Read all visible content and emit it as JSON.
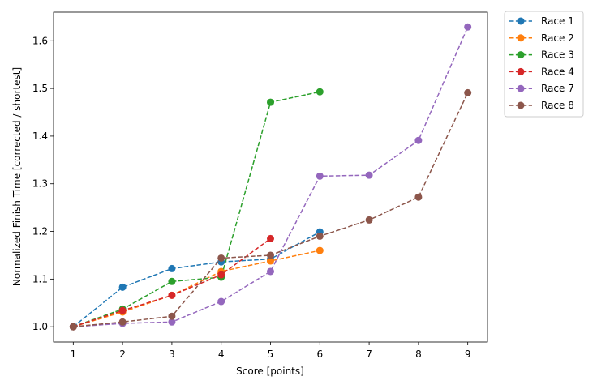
{
  "chart_data": {
    "type": "line",
    "xlabel": "Score [points]",
    "ylabel": "Normalized Finish Time [corrected / shortest]",
    "xlim": [
      0.6,
      9.4
    ],
    "ylim": [
      0.968,
      1.66
    ],
    "xticks": [
      "1",
      "2",
      "3",
      "4",
      "5",
      "6",
      "7",
      "8",
      "9"
    ],
    "yticks": [
      "1.0",
      "1.1",
      "1.2",
      "1.3",
      "1.4",
      "1.5",
      "1.6"
    ],
    "grid": false,
    "legend_position": "outside-top-right",
    "line_style": "dashed with circle markers",
    "series": [
      {
        "name": "Race 1",
        "color": "#1f77b4",
        "x": [
          1,
          2,
          3,
          4,
          5,
          6
        ],
        "y": [
          1.0,
          1.083,
          1.122,
          1.136,
          1.142,
          1.199
        ]
      },
      {
        "name": "Race 2",
        "color": "#ff7f0e",
        "x": [
          1,
          2,
          3,
          4,
          5,
          6
        ],
        "y": [
          1.0,
          1.031,
          1.066,
          1.116,
          1.138,
          1.16
        ]
      },
      {
        "name": "Race 3",
        "color": "#2ca02c",
        "x": [
          1,
          2,
          3,
          4,
          5,
          6
        ],
        "y": [
          1.0,
          1.037,
          1.095,
          1.104,
          1.471,
          1.493
        ]
      },
      {
        "name": "Race 4",
        "color": "#d62728",
        "x": [
          1,
          2,
          3,
          4,
          5
        ],
        "y": [
          1.0,
          1.034,
          1.066,
          1.109,
          1.185
        ]
      },
      {
        "name": "Race 7",
        "color": "#9467bd",
        "x": [
          1,
          2,
          3,
          4,
          5,
          6,
          7,
          8,
          9
        ],
        "y": [
          1.0,
          1.007,
          1.01,
          1.053,
          1.116,
          1.316,
          1.318,
          1.391,
          1.629
        ]
      },
      {
        "name": "Race 8",
        "color": "#8c564b",
        "x": [
          1,
          2,
          3,
          4,
          5,
          6,
          7,
          8,
          9
        ],
        "y": [
          1.0,
          1.01,
          1.022,
          1.144,
          1.15,
          1.19,
          1.224,
          1.272,
          1.491
        ]
      }
    ]
  }
}
